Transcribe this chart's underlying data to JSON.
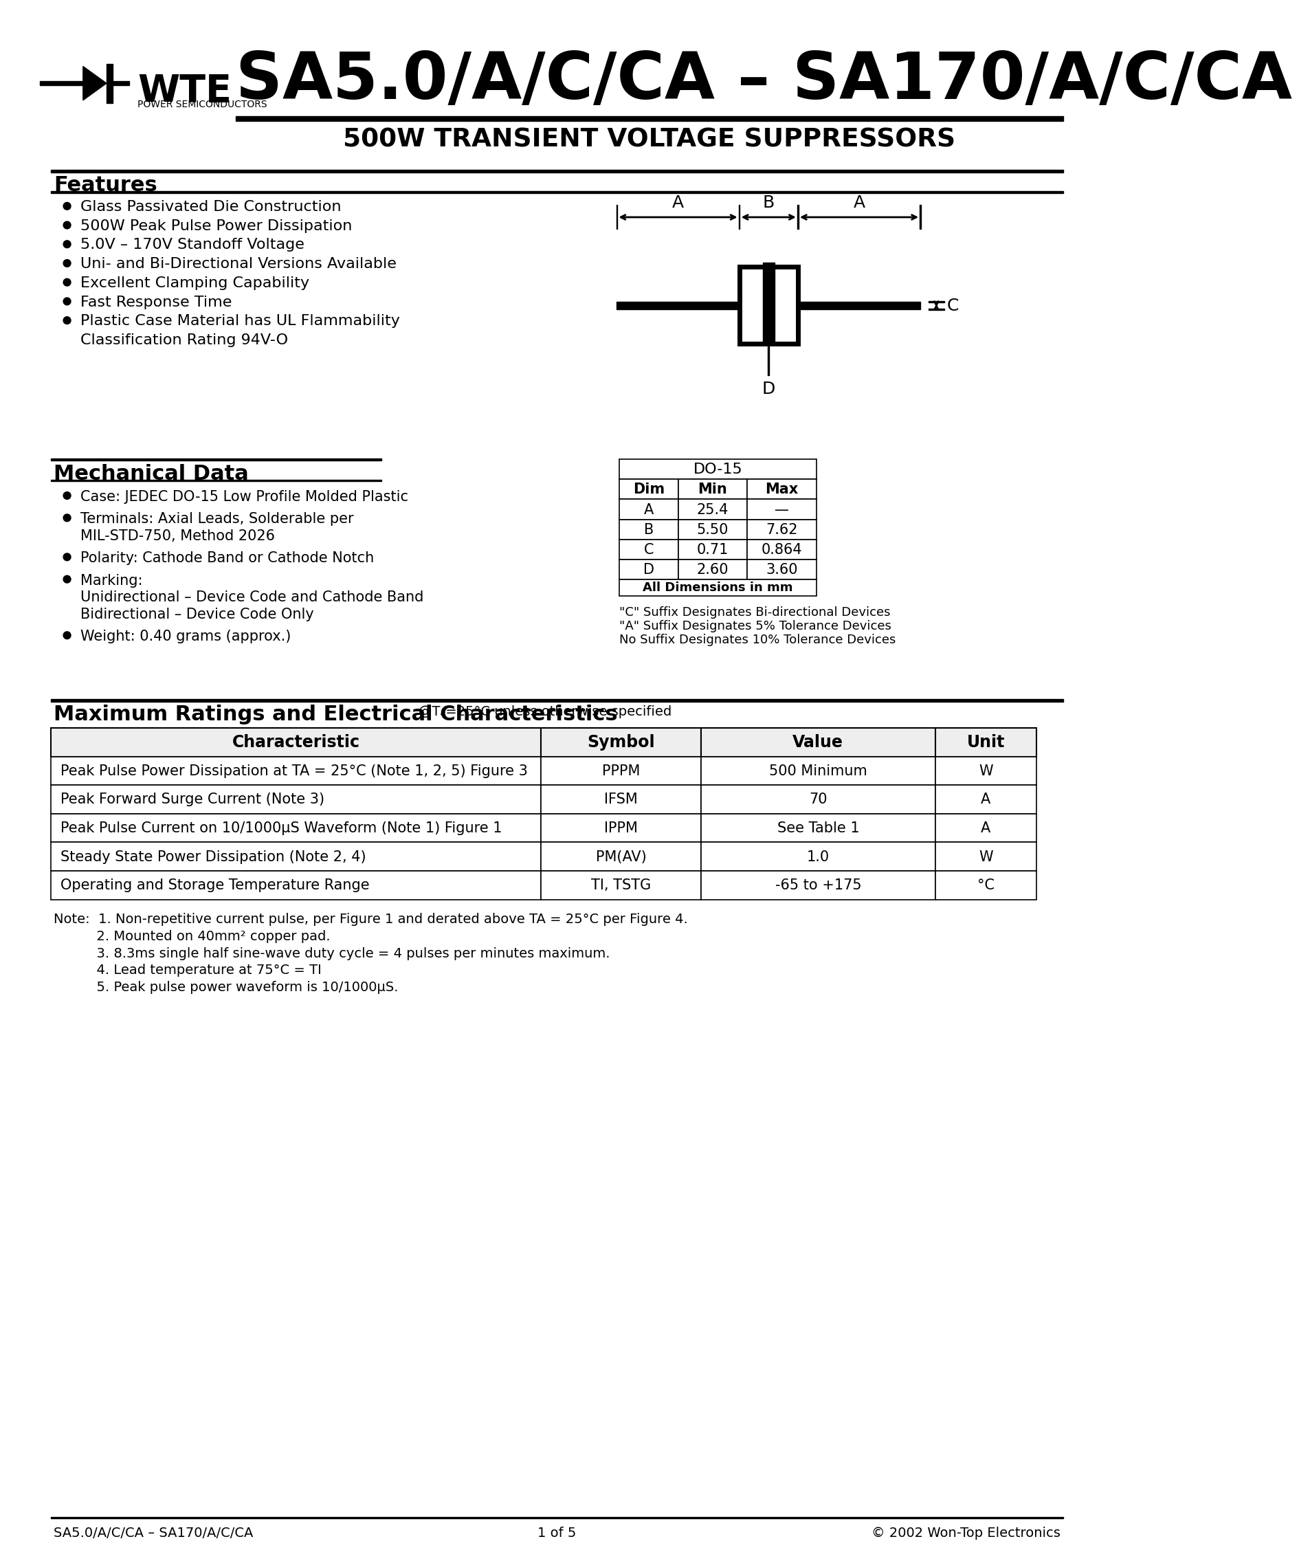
{
  "title_main": "SA5.0/A/C/CA – SA170/A/C/CA",
  "title_sub": "500W TRANSIENT VOLTAGE SUPPRESSORS",
  "company": "WTE",
  "company_sub": "POWER SEMICONDUCTORS",
  "features_title": "Features",
  "features": [
    "Glass Passivated Die Construction",
    "500W Peak Pulse Power Dissipation",
    "5.0V – 170V Standoff Voltage",
    "Uni- and Bi-Directional Versions Available",
    "Excellent Clamping Capability",
    "Fast Response Time",
    "Plastic Case Material has UL Flammability",
    "   Classification Rating 94V-O"
  ],
  "mech_title": "Mechanical Data",
  "mech_items": [
    [
      "Case: JEDEC DO-15 Low Profile Molded Plastic"
    ],
    [
      "Terminals: Axial Leads, Solderable per",
      "   MIL-STD-750, Method 2026"
    ],
    [
      "Polarity: Cathode Band or Cathode Notch"
    ],
    [
      "Marking:",
      "   Unidirectional – Device Code and Cathode Band",
      "   Bidirectional – Device Code Only"
    ],
    [
      "Weight: 0.40 grams (approx.)"
    ]
  ],
  "do15_title": "DO-15",
  "do15_headers": [
    "Dim",
    "Min",
    "Max"
  ],
  "do15_rows": [
    [
      "A",
      "25.4",
      "—"
    ],
    [
      "B",
      "5.50",
      "7.62"
    ],
    [
      "C",
      "0.71",
      "0.864"
    ],
    [
      "D",
      "2.60",
      "3.60"
    ]
  ],
  "do15_footer": "All Dimensions in mm",
  "suffix_notes": [
    "\"C\" Suffix Designates Bi-directional Devices",
    "\"A\" Suffix Designates 5% Tolerance Devices",
    "No Suffix Designates 10% Tolerance Devices"
  ],
  "ratings_title": "Maximum Ratings and Electrical Characteristics",
  "ratings_subtitle": "@Tₐ=25°C unless otherwise specified",
  "table_headers": [
    "Characteristic",
    "Symbol",
    "Value",
    "Unit"
  ],
  "table_rows": [
    [
      "Peak Pulse Power Dissipation at TA = 25°C (Note 1, 2, 5) Figure 3",
      "PPPM",
      "500 Minimum",
      "W"
    ],
    [
      "Peak Forward Surge Current (Note 3)",
      "IFSM",
      "70",
      "A"
    ],
    [
      "Peak Pulse Current on 10/1000μS Waveform (Note 1) Figure 1",
      "IPPM",
      "See Table 1",
      "A"
    ],
    [
      "Steady State Power Dissipation (Note 2, 4)",
      "PM(AV)",
      "1.0",
      "W"
    ],
    [
      "Operating and Storage Temperature Range",
      "TI, TSTG",
      "-65 to +175",
      "°C"
    ]
  ],
  "notes": [
    "Note:  1. Non-repetitive current pulse, per Figure 1 and derated above TA = 25°C per Figure 4.",
    "          2. Mounted on 40mm² copper pad.",
    "          3. 8.3ms single half sine-wave duty cycle = 4 pulses per minutes maximum.",
    "          4. Lead temperature at 75°C = TI",
    "          5. Peak pulse power waveform is 10/1000μS."
  ],
  "footer_left": "SA5.0/A/C/CA – SA170/A/C/CA",
  "footer_center": "1 of 5",
  "footer_right": "© 2002 Won-Top Electronics",
  "bg_color": "#ffffff"
}
